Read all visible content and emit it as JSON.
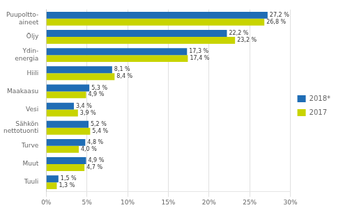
{
  "chart_data": {
    "type": "bar",
    "orientation": "horizontal",
    "categories": [
      "Tuuli",
      "Muut",
      "Turve",
      "Sähkön\nnettotuonti",
      "Vesi",
      "Maakaasu",
      "Hiili",
      "Ydin-\nenergia",
      "Öljy",
      "Puupoltto-\naineet"
    ],
    "series": [
      {
        "name": "2018*",
        "color": "#1F6DB5",
        "values": [
          1.5,
          4.9,
          4.8,
          5.2,
          3.4,
          5.3,
          8.1,
          17.3,
          22.2,
          27.2
        ],
        "value_labels": [
          "1,5 %",
          "4,9 %",
          "4,8 %",
          "5,2 %",
          "3,4 %",
          "5,3 %",
          "8,1 %",
          "17,3 %",
          "22,2 %",
          "27,2 %"
        ]
      },
      {
        "name": "2017",
        "color": "#C8D400",
        "values": [
          1.3,
          4.7,
          4.0,
          5.4,
          3.9,
          4.9,
          8.4,
          17.4,
          23.2,
          26.8
        ],
        "value_labels": [
          "1,3 %",
          "4,7 %",
          "4,0 %",
          "5,4 %",
          "3,9 %",
          "4,9 %",
          "8,4 %",
          "17,4 %",
          "23,2 %",
          "26,8 %"
        ]
      }
    ],
    "xlim": [
      0,
      30
    ],
    "xticks": [
      {
        "value": 0,
        "label": "0%"
      },
      {
        "value": 5,
        "label": "5%"
      },
      {
        "value": 10,
        "label": "10%"
      },
      {
        "value": 15,
        "label": "15%"
      },
      {
        "value": 20,
        "label": "20%"
      },
      {
        "value": 25,
        "label": "25%"
      },
      {
        "value": 30,
        "label": "30%"
      }
    ],
    "grid": true,
    "legend": "right",
    "data_labels": true
  }
}
